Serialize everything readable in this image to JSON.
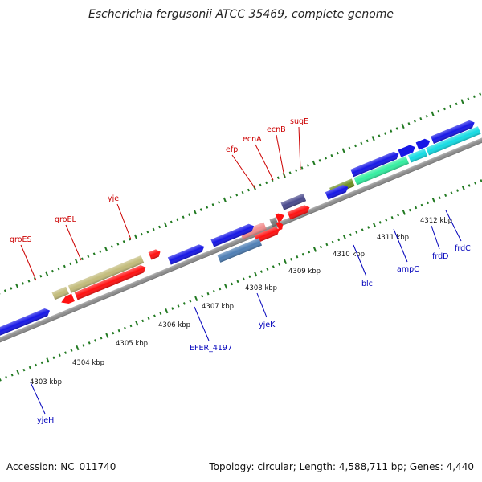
{
  "title": "Escherichia fergusonii ATCC 35469, complete genome",
  "footer": {
    "accession": "Accession: NC_011740",
    "summary": "Topology: circular; Length: 4,588,711 bp; Genes: 4,440"
  },
  "ruler_ticks": [
    {
      "label": "4303 kbp"
    },
    {
      "label": "4304 kbp"
    },
    {
      "label": "4305 kbp"
    },
    {
      "label": "4306 kbp"
    },
    {
      "label": "4307 kbp"
    },
    {
      "label": "4308 kbp"
    },
    {
      "label": "4309 kbp"
    },
    {
      "label": "4310 kbp"
    },
    {
      "label": "4311 kbp"
    },
    {
      "label": "4312 kbp"
    }
  ],
  "gene_labels_top": [
    "groES",
    "groEL",
    "yjeI",
    "efp",
    "ecnA",
    "ecnB",
    "sugE"
  ],
  "gene_labels_bottom": [
    "yjeH",
    "EFER_4197",
    "yjeK",
    "blc",
    "ampC",
    "frdD",
    "frdC"
  ],
  "colors": {
    "backbone": "#8c8c8c",
    "tick": "#227a22",
    "red": "#ff1111",
    "olive": "#c2bb7a",
    "blue": "#1717e6",
    "steel": "#4f7fb5",
    "pink": "#f28d8d",
    "gray": "#7a7a7a",
    "purple": "#4a4a8c",
    "olive_green": "#6e8f22",
    "sea_green": "#33eea0",
    "cyan": "#14dbe3"
  }
}
